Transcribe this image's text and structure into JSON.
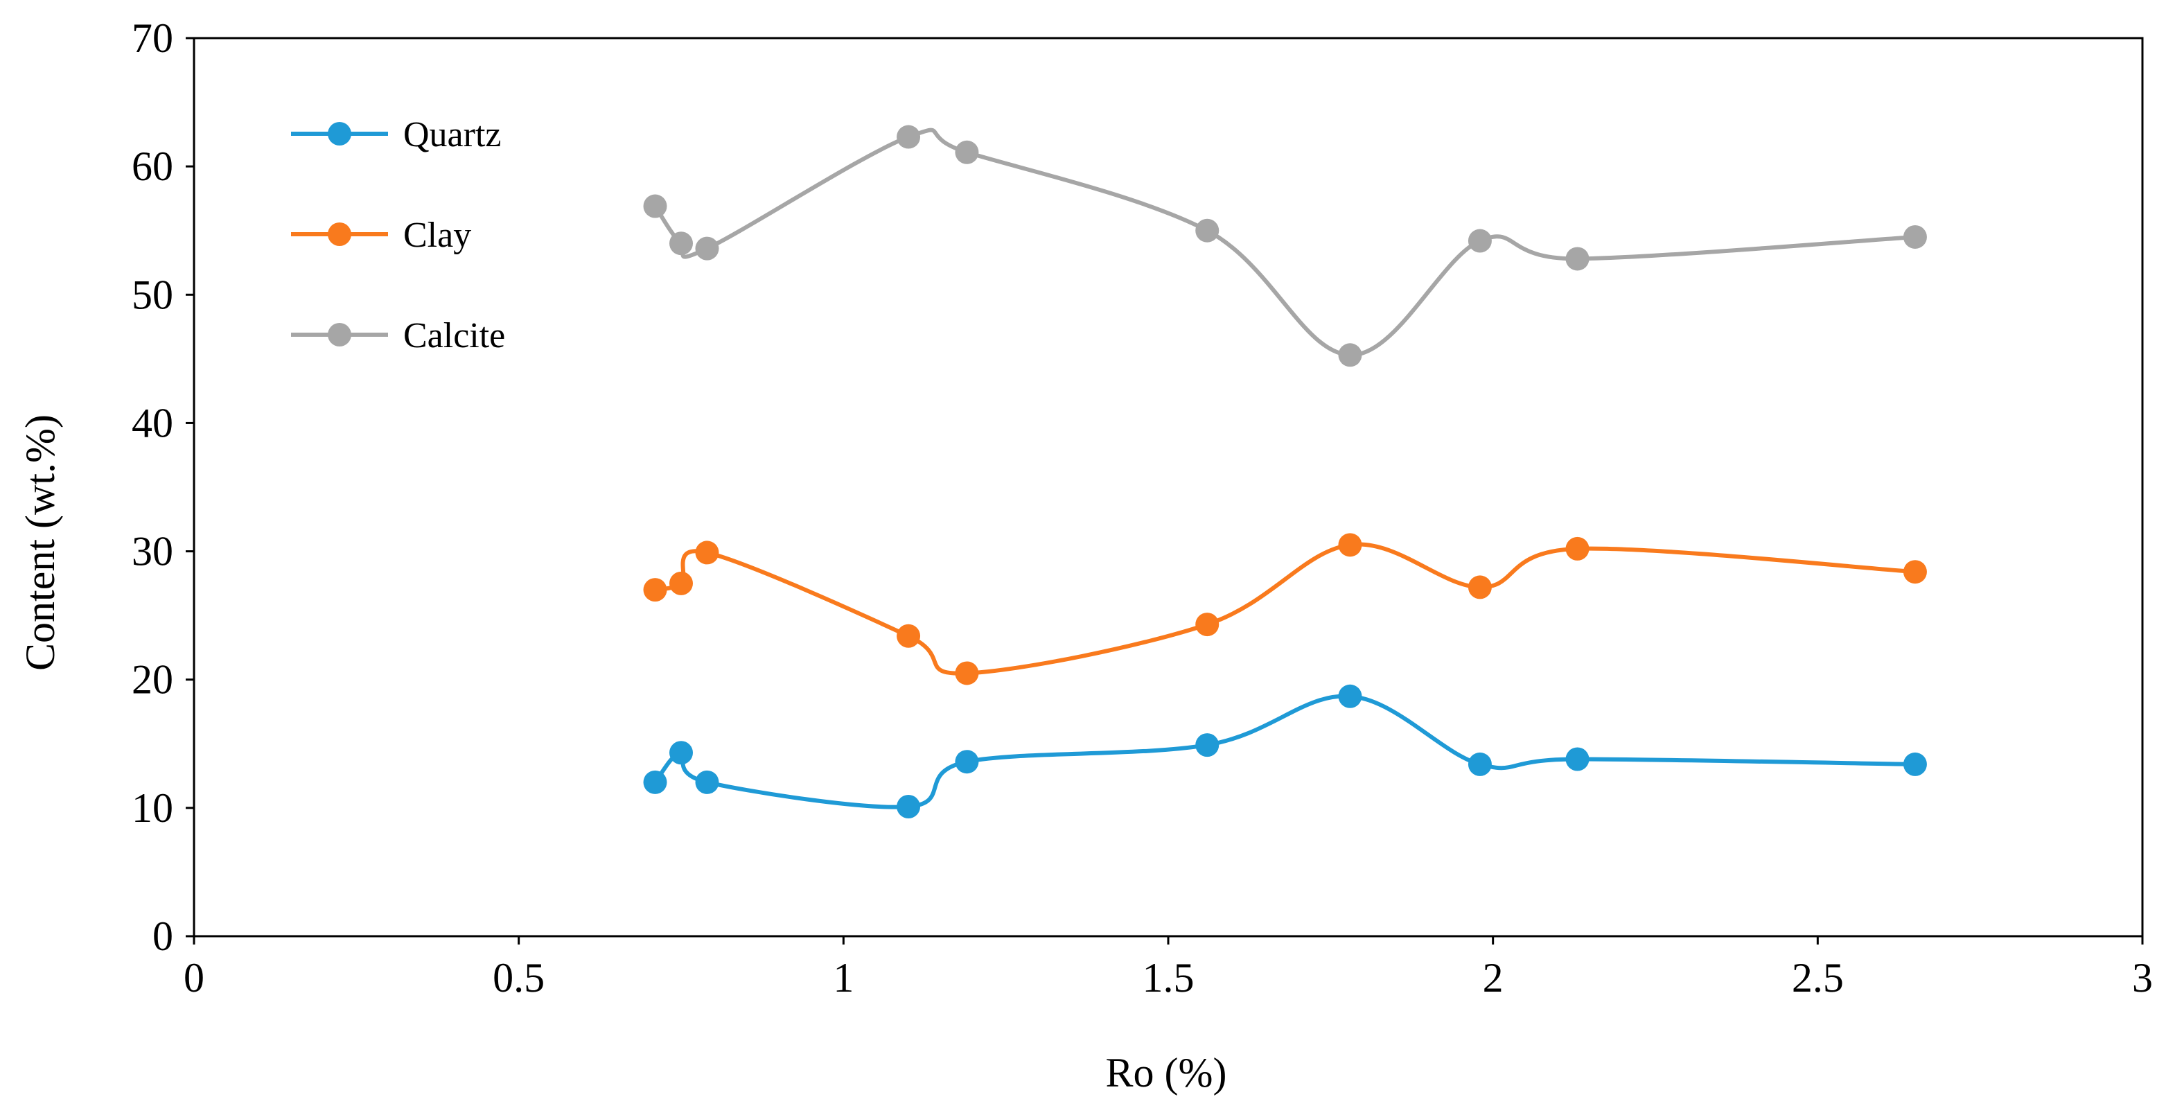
{
  "chart_data": {
    "type": "line",
    "title": "",
    "xlabel": "Ro (%)",
    "ylabel": "Content (wt.%)",
    "xlim": [
      0,
      3
    ],
    "ylim": [
      0,
      70
    ],
    "xticks": [
      0,
      0.5,
      1,
      1.5,
      2,
      2.5,
      3
    ],
    "xtick_labels": [
      "0",
      "0.5",
      "1",
      "1.5",
      "2",
      "2.5",
      "3"
    ],
    "yticks": [
      0,
      10,
      20,
      30,
      40,
      50,
      60,
      70
    ],
    "ytick_labels": [
      "0",
      "10",
      "20",
      "30",
      "40",
      "50",
      "60",
      "70"
    ],
    "grid": false,
    "legend_position": "top-left",
    "x": [
      0.71,
      0.75,
      0.79,
      1.1,
      1.19,
      1.56,
      1.78,
      1.98,
      2.13,
      2.65
    ],
    "series": [
      {
        "name": "Quartz",
        "color": "#1f9ad6",
        "values": [
          12.0,
          14.3,
          12.0,
          10.1,
          13.6,
          14.9,
          18.7,
          13.4,
          13.8,
          13.4
        ]
      },
      {
        "name": "Clay",
        "color": "#f97a1d",
        "values": [
          27.0,
          27.5,
          29.9,
          23.4,
          20.5,
          24.3,
          30.5,
          27.2,
          30.2,
          28.4
        ]
      },
      {
        "name": "Calcite",
        "color": "#a6a6a6",
        "values": [
          56.9,
          54.0,
          53.6,
          62.3,
          61.1,
          55.0,
          45.3,
          54.2,
          52.8,
          54.5
        ]
      }
    ]
  }
}
